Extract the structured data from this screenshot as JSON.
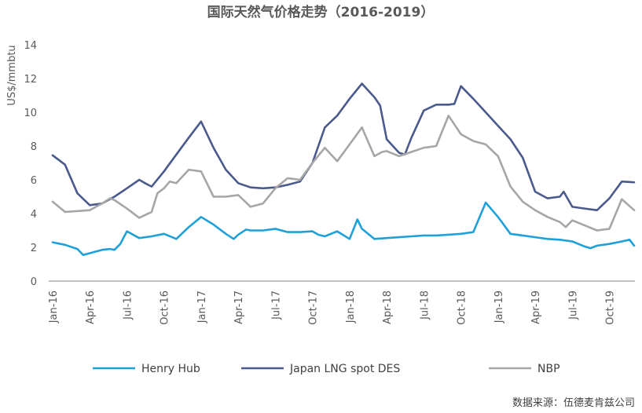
{
  "chart_data": {
    "type": "line",
    "title": "国际天然气价格走势（2016-2019）",
    "ylabel": "US$/mmbtu",
    "xlabel": "",
    "ylim": [
      0,
      14
    ],
    "yticks": [
      0,
      2,
      4,
      6,
      8,
      10,
      12,
      14
    ],
    "x_range": [
      "2016-01",
      "2019-12"
    ],
    "x_ticks": [
      "Jan-16",
      "Apr-16",
      "Jul-16",
      "Oct-16",
      "Jan-17",
      "Apr-17",
      "Jul-17",
      "Oct-17",
      "Jan-18",
      "Apr-18",
      "Jul-18",
      "Oct-18",
      "Jan-19",
      "Apr-19",
      "Jul-19",
      "Oct-19"
    ],
    "grid": false,
    "legend_position": "bottom",
    "series": [
      {
        "name": "Henry Hub",
        "color": "#1ea0d8",
        "points": [
          [
            "2016-01",
            2.3
          ],
          [
            "2016-02",
            2.15
          ],
          [
            "2016-03",
            1.9
          ],
          [
            "2016-03-15",
            1.55
          ],
          [
            "2016-04",
            1.65
          ],
          [
            "2016-05",
            1.85
          ],
          [
            "2016-05-20",
            1.9
          ],
          [
            "2016-06",
            1.85
          ],
          [
            "2016-06-15",
            2.2
          ],
          [
            "2016-07",
            2.95
          ],
          [
            "2016-08",
            2.55
          ],
          [
            "2016-09",
            2.65
          ],
          [
            "2016-10",
            2.8
          ],
          [
            "2016-11",
            2.5
          ],
          [
            "2016-12",
            3.2
          ],
          [
            "2017-01",
            3.8
          ],
          [
            "2017-02",
            3.35
          ],
          [
            "2017-03",
            2.8
          ],
          [
            "2017-03-20",
            2.5
          ],
          [
            "2017-04",
            2.75
          ],
          [
            "2017-04-20",
            3.05
          ],
          [
            "2017-05",
            3.0
          ],
          [
            "2017-06",
            3.0
          ],
          [
            "2017-07",
            3.1
          ],
          [
            "2017-08",
            2.9
          ],
          [
            "2017-09",
            2.9
          ],
          [
            "2017-10",
            2.95
          ],
          [
            "2017-10-15",
            2.75
          ],
          [
            "2017-11",
            2.65
          ],
          [
            "2017-12",
            2.95
          ],
          [
            "2018-01",
            2.5
          ],
          [
            "2018-01-20",
            3.65
          ],
          [
            "2018-02",
            3.1
          ],
          [
            "2018-03",
            2.5
          ],
          [
            "2018-04",
            2.55
          ],
          [
            "2018-05",
            2.6
          ],
          [
            "2018-06",
            2.65
          ],
          [
            "2018-07",
            2.7
          ],
          [
            "2018-08",
            2.7
          ],
          [
            "2018-09",
            2.75
          ],
          [
            "2018-10",
            2.8
          ],
          [
            "2018-11",
            2.9
          ],
          [
            "2018-12",
            4.65
          ],
          [
            "2019-01",
            3.8
          ],
          [
            "2019-02",
            2.8
          ],
          [
            "2019-03",
            2.7
          ],
          [
            "2019-04",
            2.6
          ],
          [
            "2019-05",
            2.5
          ],
          [
            "2019-06",
            2.45
          ],
          [
            "2019-07",
            2.35
          ],
          [
            "2019-08",
            2.05
          ],
          [
            "2019-08-15",
            1.95
          ],
          [
            "2019-09",
            2.1
          ],
          [
            "2019-10",
            2.2
          ],
          [
            "2019-11",
            2.35
          ],
          [
            "2019-11-20",
            2.45
          ],
          [
            "2019-12",
            2.1
          ]
        ]
      },
      {
        "name": "Japan LNG spot DES",
        "color": "#4a5a8c",
        "points": [
          [
            "2016-01",
            7.45
          ],
          [
            "2016-02",
            6.9
          ],
          [
            "2016-03",
            5.2
          ],
          [
            "2016-04",
            4.5
          ],
          [
            "2016-05",
            4.6
          ],
          [
            "2016-06",
            5.0
          ],
          [
            "2016-07",
            5.5
          ],
          [
            "2016-08",
            6.0
          ],
          [
            "2016-08-15",
            5.8
          ],
          [
            "2016-09",
            5.6
          ],
          [
            "2016-10",
            6.5
          ],
          [
            "2016-11",
            7.5
          ],
          [
            "2016-12",
            8.5
          ],
          [
            "2017-01",
            9.45
          ],
          [
            "2017-02",
            7.9
          ],
          [
            "2017-03",
            6.6
          ],
          [
            "2017-04",
            5.8
          ],
          [
            "2017-05",
            5.55
          ],
          [
            "2017-06",
            5.5
          ],
          [
            "2017-07",
            5.55
          ],
          [
            "2017-08",
            5.7
          ],
          [
            "2017-09",
            5.9
          ],
          [
            "2017-10",
            7.0
          ],
          [
            "2017-11",
            9.1
          ],
          [
            "2017-12",
            9.8
          ],
          [
            "2018-01",
            10.8
          ],
          [
            "2018-02",
            11.7
          ],
          [
            "2018-03",
            10.9
          ],
          [
            "2018-03-15",
            10.4
          ],
          [
            "2018-04",
            8.4
          ],
          [
            "2018-05",
            7.6
          ],
          [
            "2018-05-15",
            7.5
          ],
          [
            "2018-06",
            8.5
          ],
          [
            "2018-07",
            10.1
          ],
          [
            "2018-08",
            10.45
          ],
          [
            "2018-09",
            10.45
          ],
          [
            "2018-09-15",
            10.5
          ],
          [
            "2018-10",
            11.55
          ],
          [
            "2018-11",
            10.8
          ],
          [
            "2018-12",
            10.0
          ],
          [
            "2019-01",
            9.2
          ],
          [
            "2019-02",
            8.4
          ],
          [
            "2019-03",
            7.3
          ],
          [
            "2019-04",
            5.3
          ],
          [
            "2019-05",
            4.9
          ],
          [
            "2019-06",
            5.0
          ],
          [
            "2019-06-10",
            5.3
          ],
          [
            "2019-07",
            4.4
          ],
          [
            "2019-08",
            4.3
          ],
          [
            "2019-09",
            4.2
          ],
          [
            "2019-10",
            4.9
          ],
          [
            "2019-11",
            5.9
          ],
          [
            "2019-12",
            5.85
          ]
        ]
      },
      {
        "name": "NBP",
        "color": "#a6a6a6",
        "points": [
          [
            "2016-01",
            4.7
          ],
          [
            "2016-02",
            4.1
          ],
          [
            "2016-03",
            4.15
          ],
          [
            "2016-04",
            4.2
          ],
          [
            "2016-05",
            4.6
          ],
          [
            "2016-05-20",
            4.9
          ],
          [
            "2016-06",
            4.8
          ],
          [
            "2016-07",
            4.3
          ],
          [
            "2016-08",
            3.75
          ],
          [
            "2016-09",
            4.1
          ],
          [
            "2016-09-15",
            5.2
          ],
          [
            "2016-10",
            5.5
          ],
          [
            "2016-10-15",
            5.9
          ],
          [
            "2016-11",
            5.8
          ],
          [
            "2016-12",
            6.6
          ],
          [
            "2017-01",
            6.5
          ],
          [
            "2017-02",
            5.0
          ],
          [
            "2017-03",
            5.0
          ],
          [
            "2017-04",
            5.1
          ],
          [
            "2017-05",
            4.4
          ],
          [
            "2017-06",
            4.6
          ],
          [
            "2017-07",
            5.5
          ],
          [
            "2017-08",
            6.1
          ],
          [
            "2017-09",
            6.0
          ],
          [
            "2017-10",
            7.0
          ],
          [
            "2017-11",
            7.9
          ],
          [
            "2017-12",
            7.1
          ],
          [
            "2018-01",
            8.1
          ],
          [
            "2018-02",
            9.1
          ],
          [
            "2018-03",
            7.4
          ],
          [
            "2018-03-20",
            7.65
          ],
          [
            "2018-04",
            7.7
          ],
          [
            "2018-05",
            7.4
          ],
          [
            "2018-06",
            7.65
          ],
          [
            "2018-07",
            7.9
          ],
          [
            "2018-08",
            8.0
          ],
          [
            "2018-09",
            9.8
          ],
          [
            "2018-10",
            8.7
          ],
          [
            "2018-11",
            8.3
          ],
          [
            "2018-12",
            8.1
          ],
          [
            "2019-01",
            7.4
          ],
          [
            "2019-02",
            5.6
          ],
          [
            "2019-03",
            4.7
          ],
          [
            "2019-04",
            4.2
          ],
          [
            "2019-05",
            3.8
          ],
          [
            "2019-06",
            3.5
          ],
          [
            "2019-06-15",
            3.2
          ],
          [
            "2019-07",
            3.6
          ],
          [
            "2019-08",
            3.3
          ],
          [
            "2019-09",
            3.0
          ],
          [
            "2019-10",
            3.1
          ],
          [
            "2019-11",
            4.85
          ],
          [
            "2019-12",
            4.2
          ]
        ]
      }
    ]
  },
  "source_note": "数据来源：伍德麦肯兹公司"
}
